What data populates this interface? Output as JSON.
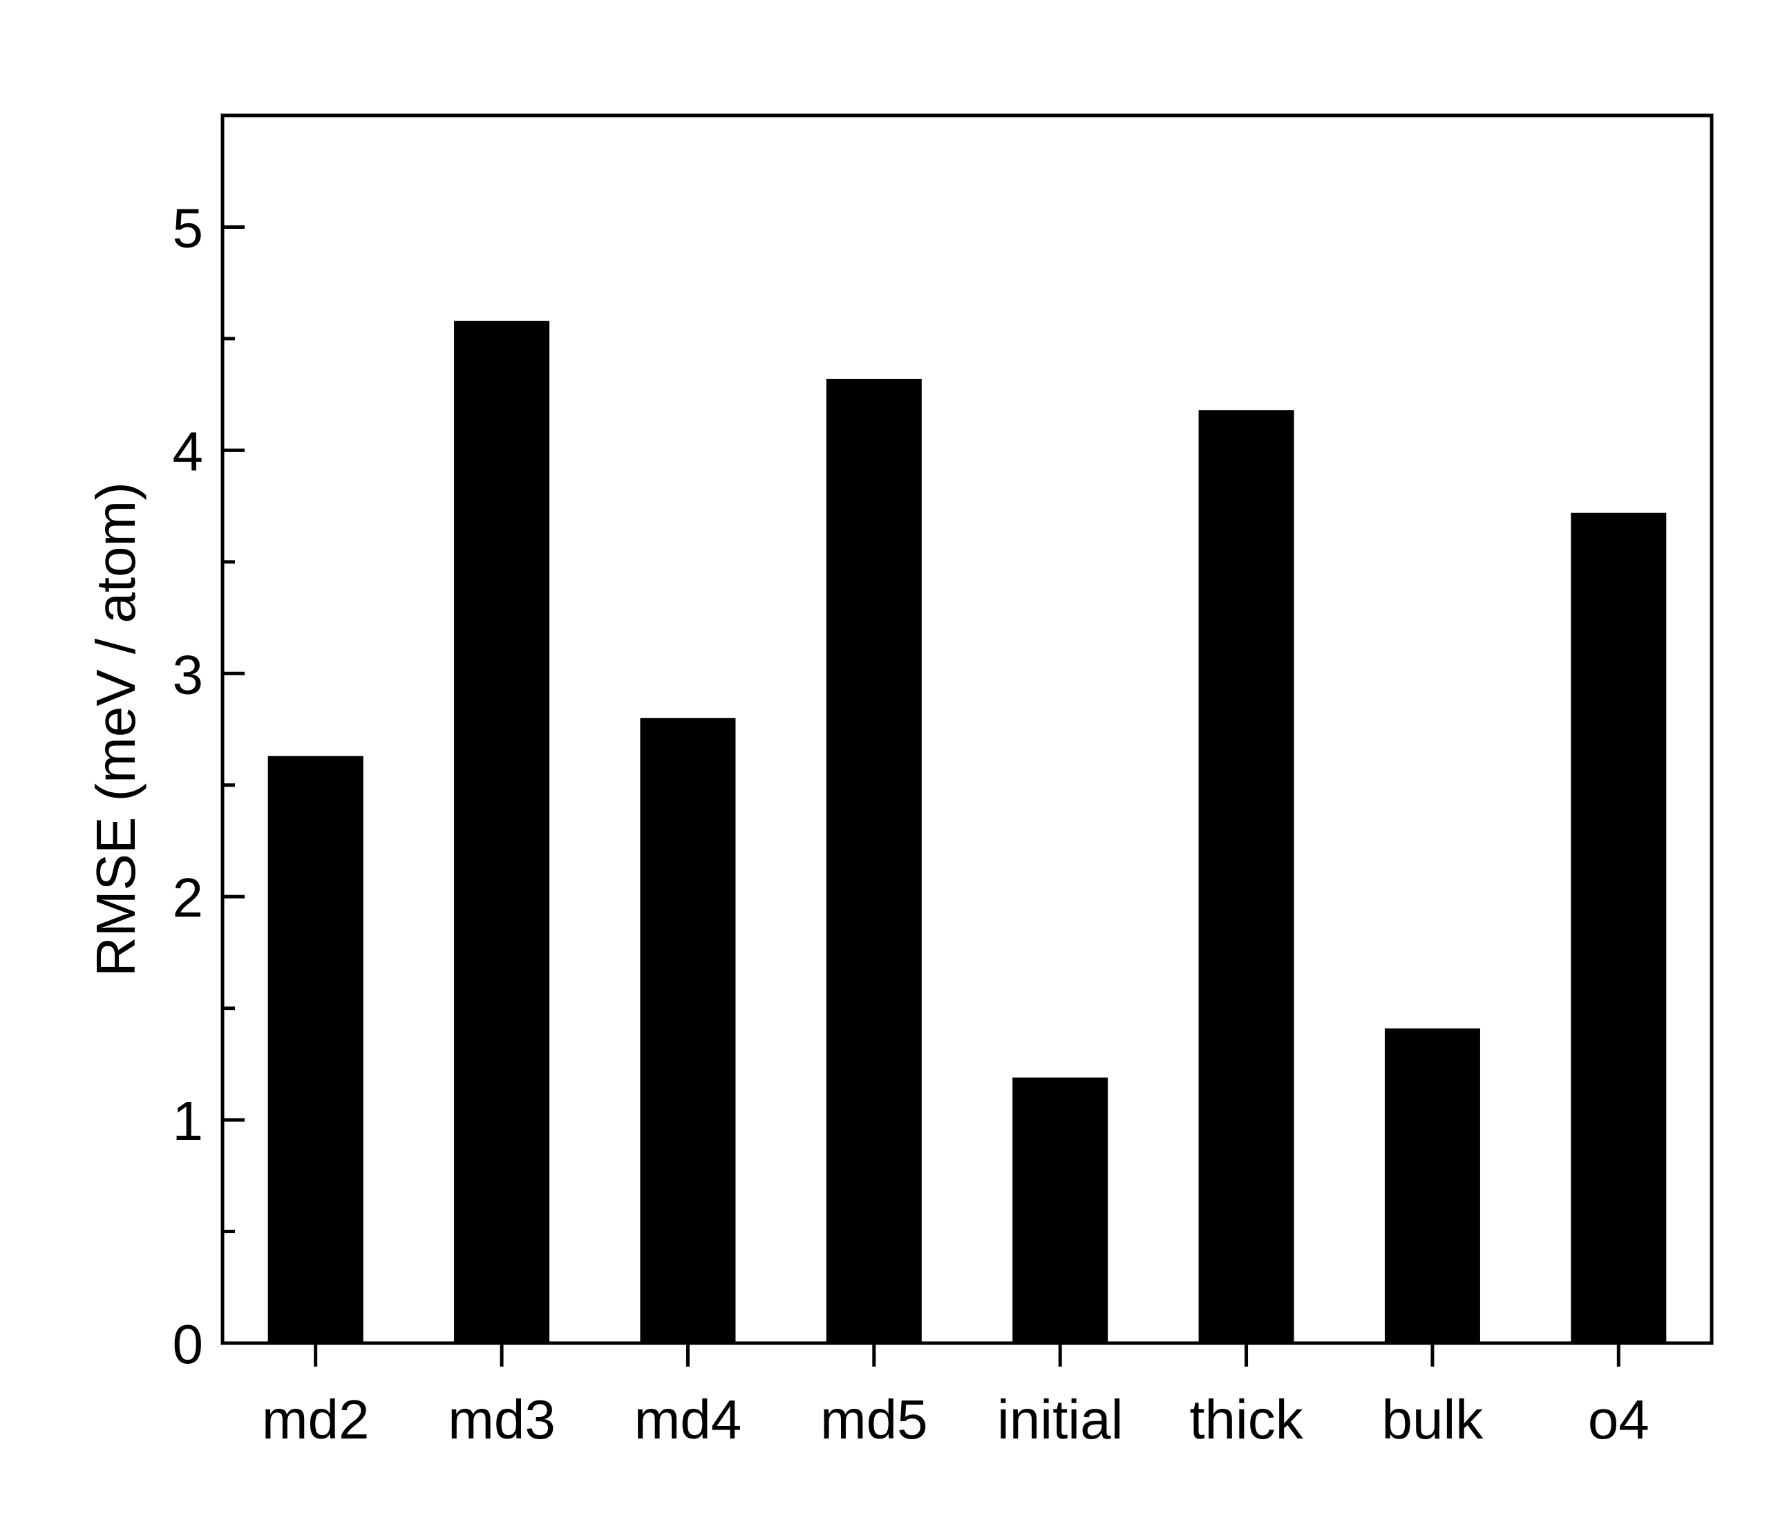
{
  "chart_data": {
    "type": "bar",
    "title": "",
    "xlabel": "",
    "ylabel": "RMSE (meV / atom)",
    "categories": [
      "md2",
      "md3",
      "md4",
      "md5",
      "initial",
      "thick",
      "bulk",
      "o4"
    ],
    "values": [
      2.63,
      4.58,
      2.8,
      4.32,
      1.19,
      4.18,
      1.41,
      3.72
    ],
    "ylim": [
      0,
      5.5
    ],
    "yticks": [
      0,
      1,
      2,
      3,
      4,
      5
    ],
    "yticks_minor": [
      0.5,
      1.5,
      2.5,
      3.5,
      4.5
    ],
    "bar_color": "#000000",
    "grid": false,
    "legend": "none"
  }
}
